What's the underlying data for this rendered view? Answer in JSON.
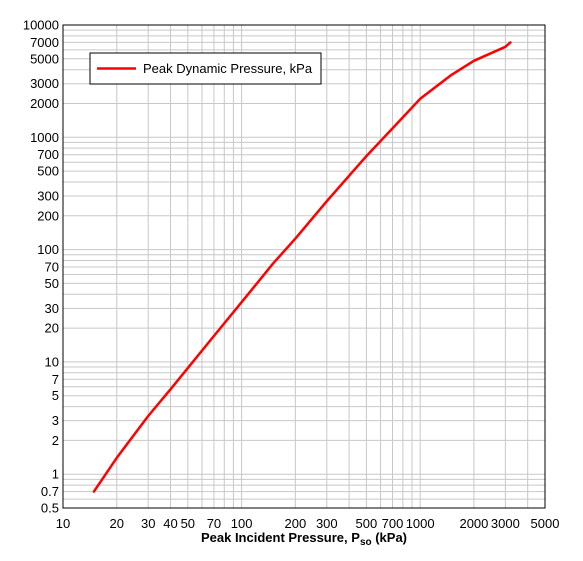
{
  "chart_data": {
    "type": "line",
    "xscale": "log",
    "yscale": "log",
    "xlim": [
      10,
      5000
    ],
    "ylim": [
      0.5,
      10000
    ],
    "grid": true,
    "legend_placement": "top-left",
    "xlabel_main": "Peak Incident Pressure, P",
    "xlabel_sub": "so",
    "xlabel_unit": " (kPa)",
    "ylabel": "",
    "x_ticks": [
      10,
      20,
      30,
      40,
      50,
      70,
      100,
      200,
      300,
      500,
      700,
      1000,
      2000,
      3000,
      5000
    ],
    "x_tick_labels": [
      "10",
      "20",
      "30",
      "40",
      "50",
      "70",
      "100",
      "200",
      "300",
      "500",
      "700",
      "1000",
      "2000",
      "3000",
      "5000"
    ],
    "y_ticks": [
      0.5,
      0.7,
      1,
      2,
      3,
      5,
      7,
      10,
      20,
      30,
      50,
      70,
      100,
      200,
      300,
      500,
      700,
      1000,
      2000,
      3000,
      5000,
      7000,
      10000
    ],
    "y_tick_labels": [
      "0.5",
      "0.7",
      "1",
      "2",
      "3",
      "5",
      "7",
      "10",
      "20",
      "30",
      "50",
      "70",
      "100",
      "200",
      "300",
      "500",
      "700",
      "1000",
      "2000",
      "3000",
      "5000",
      "7000",
      "10000"
    ],
    "series": [
      {
        "name": "Peak Dynamic Pressure, kPa",
        "color": "#ff0000",
        "x": [
          14.9,
          20,
          30,
          40,
          50,
          70,
          100,
          150,
          200,
          300,
          500,
          700,
          1000,
          1500,
          2000,
          3000,
          3200
        ],
        "y": [
          0.7,
          1.4,
          3.3,
          5.7,
          8.8,
          17,
          34,
          75,
          125,
          270,
          680,
          1200,
          2200,
          3600,
          4800,
          6400,
          7000
        ]
      }
    ]
  }
}
